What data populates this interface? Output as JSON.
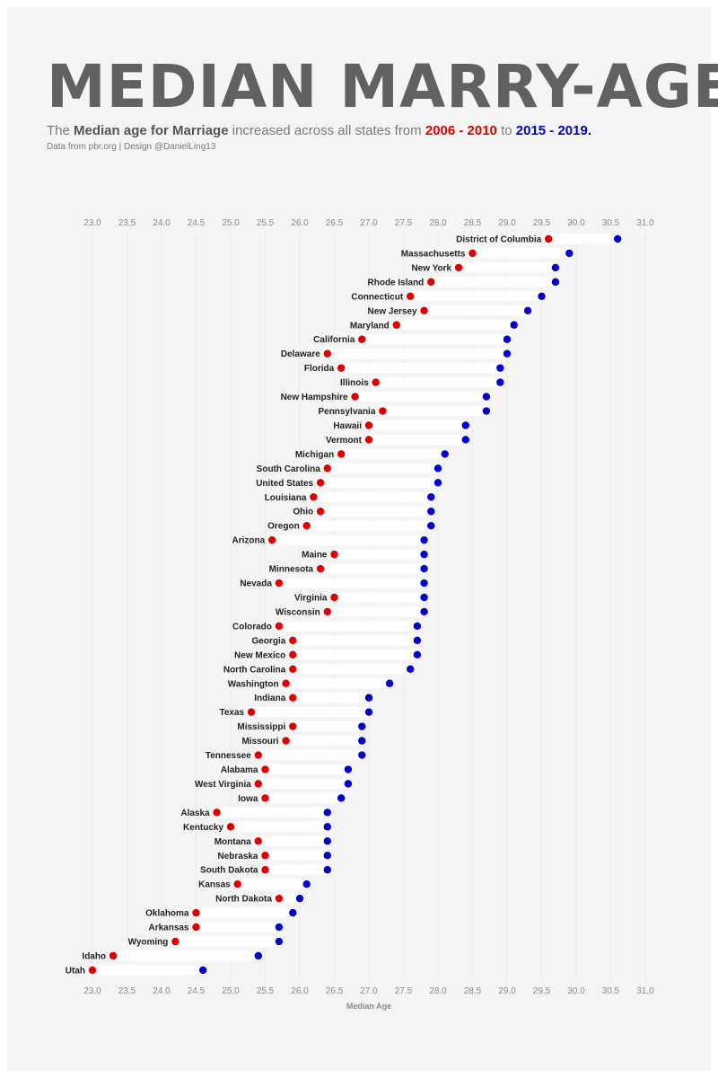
{
  "header": {
    "title": "MEDIAN MARRY-AGE",
    "subtitle_pre": "The ",
    "subtitle_bold": "Median age for Marriage",
    "subtitle_mid": " increased across all states from ",
    "subtitle_range1": "2006 - 2010",
    "subtitle_to": " to ",
    "subtitle_range2": "2015 - 2019.",
    "credit": "Data from pbr.org | Design @DanielLing13"
  },
  "colors": {
    "series_2006_2010": "#e00000",
    "series_2015_2019": "#0000cc",
    "bar_track": "#ffffff",
    "panel": "#f5f5f5"
  },
  "chart_data": {
    "type": "dumbbell",
    "xlabel": "Median Age",
    "xlim": [
      23.0,
      31.0
    ],
    "xticks": [
      "23.0",
      "23.5",
      "24.0",
      "24.5",
      "25.0",
      "25.5",
      "26.0",
      "26.5",
      "27.0",
      "27.5",
      "28.0",
      "28.5",
      "29.0",
      "29.5",
      "30.0",
      "30.5",
      "31.0"
    ],
    "axis_position": "top-and-bottom",
    "grid": "vertical",
    "series": [
      "2006 - 2010",
      "2015 - 2019"
    ],
    "states": [
      {
        "name": "District of Columbia",
        "v2006_2010": 29.6,
        "v2015_2019": 30.6
      },
      {
        "name": "Massachusetts",
        "v2006_2010": 28.5,
        "v2015_2019": 29.9
      },
      {
        "name": "New York",
        "v2006_2010": 28.3,
        "v2015_2019": 29.7
      },
      {
        "name": "Rhode Island",
        "v2006_2010": 27.9,
        "v2015_2019": 29.7
      },
      {
        "name": "Connecticut",
        "v2006_2010": 27.6,
        "v2015_2019": 29.5
      },
      {
        "name": "New Jersey",
        "v2006_2010": 27.8,
        "v2015_2019": 29.3
      },
      {
        "name": "Maryland",
        "v2006_2010": 27.4,
        "v2015_2019": 29.1
      },
      {
        "name": "California",
        "v2006_2010": 26.9,
        "v2015_2019": 29.0
      },
      {
        "name": "Delaware",
        "v2006_2010": 26.4,
        "v2015_2019": 29.0
      },
      {
        "name": "Florida",
        "v2006_2010": 26.6,
        "v2015_2019": 28.9
      },
      {
        "name": "Illinois",
        "v2006_2010": 27.1,
        "v2015_2019": 28.9
      },
      {
        "name": "New Hampshire",
        "v2006_2010": 26.8,
        "v2015_2019": 28.7
      },
      {
        "name": "Pennsylvania",
        "v2006_2010": 27.2,
        "v2015_2019": 28.7
      },
      {
        "name": "Hawaii",
        "v2006_2010": 27.0,
        "v2015_2019": 28.4
      },
      {
        "name": "Vermont",
        "v2006_2010": 27.0,
        "v2015_2019": 28.4
      },
      {
        "name": "Michigan",
        "v2006_2010": 26.6,
        "v2015_2019": 28.1
      },
      {
        "name": "South Carolina",
        "v2006_2010": 26.4,
        "v2015_2019": 28.0
      },
      {
        "name": "United States",
        "v2006_2010": 26.3,
        "v2015_2019": 28.0
      },
      {
        "name": "Louisiana",
        "v2006_2010": 26.2,
        "v2015_2019": 27.9
      },
      {
        "name": "Ohio",
        "v2006_2010": 26.3,
        "v2015_2019": 27.9
      },
      {
        "name": "Oregon",
        "v2006_2010": 26.1,
        "v2015_2019": 27.9
      },
      {
        "name": "Arizona",
        "v2006_2010": 25.6,
        "v2015_2019": 27.8
      },
      {
        "name": "Maine",
        "v2006_2010": 26.5,
        "v2015_2019": 27.8
      },
      {
        "name": "Minnesota",
        "v2006_2010": 26.3,
        "v2015_2019": 27.8
      },
      {
        "name": "Nevada",
        "v2006_2010": 25.7,
        "v2015_2019": 27.8
      },
      {
        "name": "Virginia",
        "v2006_2010": 26.5,
        "v2015_2019": 27.8
      },
      {
        "name": "Wisconsin",
        "v2006_2010": 26.4,
        "v2015_2019": 27.8
      },
      {
        "name": "Colorado",
        "v2006_2010": 25.7,
        "v2015_2019": 27.7
      },
      {
        "name": "Georgia",
        "v2006_2010": 25.9,
        "v2015_2019": 27.7
      },
      {
        "name": "New Mexico",
        "v2006_2010": 25.9,
        "v2015_2019": 27.7
      },
      {
        "name": "North Carolina",
        "v2006_2010": 25.9,
        "v2015_2019": 27.6
      },
      {
        "name": "Washington",
        "v2006_2010": 25.8,
        "v2015_2019": 27.3
      },
      {
        "name": "Indiana",
        "v2006_2010": 25.9,
        "v2015_2019": 27.0
      },
      {
        "name": "Texas",
        "v2006_2010": 25.3,
        "v2015_2019": 27.0
      },
      {
        "name": "Mississippi",
        "v2006_2010": 25.9,
        "v2015_2019": 26.9
      },
      {
        "name": "Missouri",
        "v2006_2010": 25.8,
        "v2015_2019": 26.9
      },
      {
        "name": "Tennessee",
        "v2006_2010": 25.4,
        "v2015_2019": 26.9
      },
      {
        "name": "Alabama",
        "v2006_2010": 25.5,
        "v2015_2019": 26.7
      },
      {
        "name": "West Virginia",
        "v2006_2010": 25.4,
        "v2015_2019": 26.7
      },
      {
        "name": "Iowa",
        "v2006_2010": 25.5,
        "v2015_2019": 26.6
      },
      {
        "name": "Alaska",
        "v2006_2010": 24.8,
        "v2015_2019": 26.4
      },
      {
        "name": "Kentucky",
        "v2006_2010": 25.0,
        "v2015_2019": 26.4
      },
      {
        "name": "Montana",
        "v2006_2010": 25.4,
        "v2015_2019": 26.4
      },
      {
        "name": "Nebraska",
        "v2006_2010": 25.5,
        "v2015_2019": 26.4
      },
      {
        "name": "South Dakota",
        "v2006_2010": 25.5,
        "v2015_2019": 26.4
      },
      {
        "name": "Kansas",
        "v2006_2010": 25.1,
        "v2015_2019": 26.1
      },
      {
        "name": "North Dakota",
        "v2006_2010": 25.7,
        "v2015_2019": 26.0
      },
      {
        "name": "Oklahoma",
        "v2006_2010": 24.5,
        "v2015_2019": 25.9
      },
      {
        "name": "Arkansas",
        "v2006_2010": 24.5,
        "v2015_2019": 25.7
      },
      {
        "name": "Wyoming",
        "v2006_2010": 24.2,
        "v2015_2019": 25.7
      },
      {
        "name": "Idaho",
        "v2006_2010": 23.3,
        "v2015_2019": 25.4
      },
      {
        "name": "Utah",
        "v2006_2010": 23.0,
        "v2015_2019": 24.6
      }
    ]
  }
}
